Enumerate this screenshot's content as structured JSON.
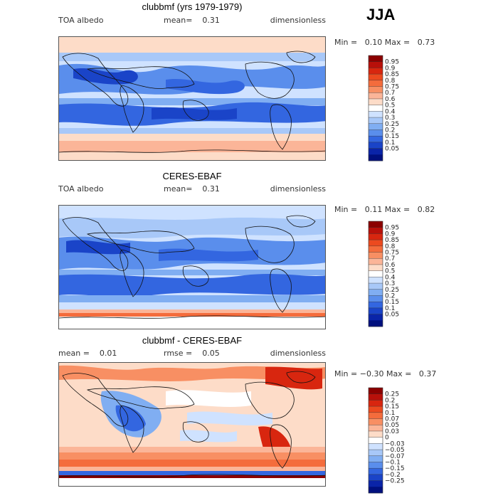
{
  "season": "JJA",
  "panels": [
    {
      "title": "clubbmf (yrs 1979-1979)",
      "left_label": "TOA albedo",
      "mean_label": "mean=",
      "mean_value": "0.31",
      "units": "dimensionless",
      "min_label": "Min =",
      "min_value": "0.10",
      "max_label": "Max =",
      "max_value": "0.73",
      "levels": [
        "0.95",
        "0.9",
        "0.85",
        "0.8",
        "0.75",
        "0.7",
        "0.6",
        "0.5",
        "0.4",
        "0.3",
        "0.25",
        "0.2",
        "0.15",
        "0.1",
        "0.05"
      ],
      "colors": [
        "#8b0000",
        "#b8100a",
        "#d8260f",
        "#ec4a1f",
        "#f46c3c",
        "#f88f63",
        "#fbb598",
        "#fddcc8",
        "#ffffff",
        "#cfe2ff",
        "#a8c8f8",
        "#80aef2",
        "#5a8eec",
        "#3366e0",
        "#1a44c8",
        "#0a24a8",
        "#00107e"
      ]
    },
    {
      "title": "CERES-EBAF",
      "left_label": "TOA albedo",
      "mean_label": "mean=",
      "mean_value": "0.31",
      "units": "dimensionless",
      "min_label": "Min =",
      "min_value": "0.11",
      "max_label": "Max =",
      "max_value": "0.82",
      "levels": [
        "0.95",
        "0.9",
        "0.85",
        "0.8",
        "0.75",
        "0.7",
        "0.6",
        "0.5",
        "0.4",
        "0.3",
        "0.25",
        "0.2",
        "0.15",
        "0.1",
        "0.05"
      ],
      "colors": [
        "#8b0000",
        "#b8100a",
        "#d8260f",
        "#ec4a1f",
        "#f46c3c",
        "#f88f63",
        "#fbb598",
        "#fddcc8",
        "#ffffff",
        "#cfe2ff",
        "#a8c8f8",
        "#80aef2",
        "#5a8eec",
        "#3366e0",
        "#1a44c8",
        "#0a24a8",
        "#00107e"
      ]
    },
    {
      "title": "clubbmf - CERES-EBAF",
      "left_label": "mean =",
      "left_value": "0.01",
      "mean_label": "rmse =",
      "mean_value": "0.05",
      "units": "dimensionless",
      "min_label": "Min =",
      "min_value": "−0.30",
      "max_label": "Max =",
      "max_value": "0.37",
      "levels": [
        "0.25",
        "0.2",
        "0.15",
        "0.1",
        "0.07",
        "0.05",
        "0.03",
        "0",
        "−0.03",
        "−0.05",
        "−0.07",
        "−0.1",
        "−0.15",
        "−0.2",
        "−0.25"
      ],
      "colors": [
        "#8b0000",
        "#b8100a",
        "#d8260f",
        "#ec4a1f",
        "#f46c3c",
        "#f88f63",
        "#fbb598",
        "#fddcc8",
        "#ffffff",
        "#cfe2ff",
        "#a8c8f8",
        "#80aef2",
        "#5a8eec",
        "#3366e0",
        "#1a44c8",
        "#0a24a8",
        "#00107e"
      ]
    }
  ]
}
